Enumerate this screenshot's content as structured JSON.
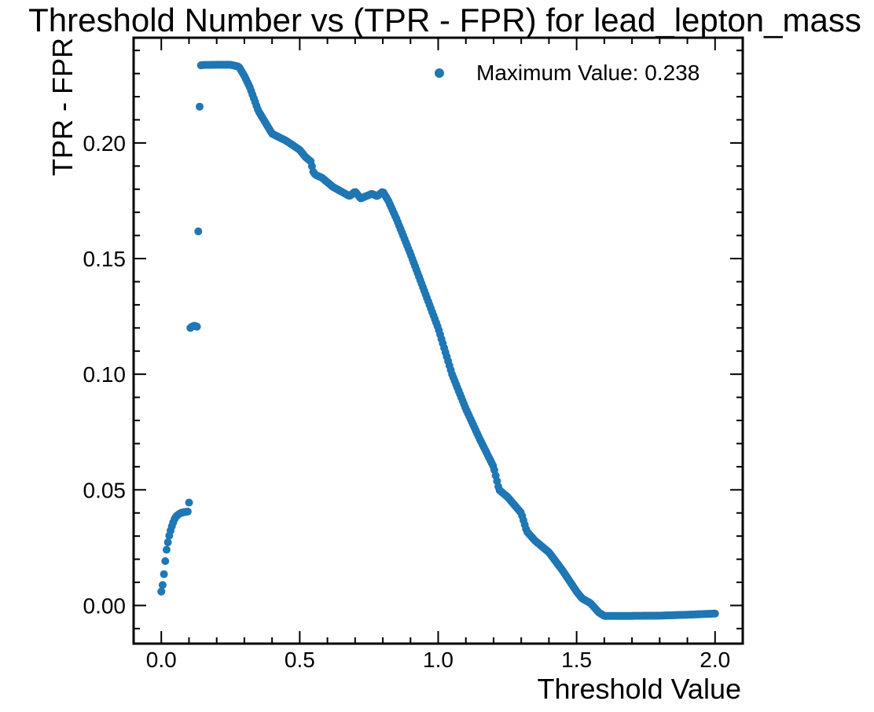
{
  "chart_data": {
    "type": "scatter",
    "title": "Threshold Number vs (TPR - FPR) for lead_lepton_mass",
    "xlabel": "Threshold Value",
    "ylabel": "TPR - FPR",
    "xlim": [
      -0.1,
      2.1
    ],
    "ylim": [
      -0.0165,
      0.2455
    ],
    "x_ticks": [
      0.0,
      0.5,
      1.0,
      1.5,
      2.0
    ],
    "x_tick_labels": [
      "0.0",
      "0.5",
      "1.0",
      "1.5",
      "2.0"
    ],
    "y_ticks": [
      0.0,
      0.05,
      0.1,
      0.15,
      0.2
    ],
    "y_tick_labels": [
      "0.00",
      "0.05",
      "0.10",
      "0.15",
      "0.20"
    ],
    "legend": {
      "label": "Maximum Value: 0.238",
      "placement": "top-right"
    },
    "grid": false,
    "marker_color": "#1f77b4",
    "series": [
      {
        "name": "Maximum Value: 0.238",
        "curve_x": [
          0.0,
          0.005,
          0.01,
          0.015,
          0.02,
          0.03,
          0.04,
          0.05,
          0.06,
          0.07,
          0.08,
          0.09,
          0.1,
          0.105,
          0.11,
          0.12,
          0.13,
          0.14,
          0.15,
          0.2,
          0.25,
          0.28,
          0.3,
          0.32,
          0.35,
          0.38,
          0.4,
          0.45,
          0.5,
          0.52,
          0.54,
          0.55,
          0.56,
          0.58,
          0.6,
          0.62,
          0.65,
          0.68,
          0.7,
          0.72,
          0.74,
          0.76,
          0.78,
          0.8,
          0.82,
          0.85,
          0.9,
          0.95,
          1.0,
          1.05,
          1.1,
          1.15,
          1.2,
          1.21,
          1.22,
          1.25,
          1.3,
          1.32,
          1.35,
          1.4,
          1.45,
          1.5,
          1.52,
          1.55,
          1.58,
          1.6,
          1.7,
          1.8,
          1.9,
          2.0
        ],
        "curve_y": [
          0.006,
          0.009,
          0.014,
          0.02,
          0.025,
          0.031,
          0.035,
          0.038,
          0.0392,
          0.04,
          0.0403,
          0.0405,
          0.0407,
          0.12,
          0.1205,
          0.121,
          0.1205,
          0.2335,
          0.2337,
          0.2338,
          0.2338,
          0.233,
          0.229,
          0.224,
          0.214,
          0.208,
          0.204,
          0.201,
          0.197,
          0.194,
          0.192,
          0.187,
          0.186,
          0.185,
          0.183,
          0.181,
          0.179,
          0.177,
          0.179,
          0.176,
          0.177,
          0.178,
          0.177,
          0.179,
          0.175,
          0.167,
          0.152,
          0.136,
          0.12,
          0.1,
          0.085,
          0.072,
          0.06,
          0.055,
          0.05,
          0.047,
          0.04,
          0.032,
          0.028,
          0.023,
          0.015,
          0.006,
          0.003,
          0.001,
          -0.003,
          -0.0045,
          -0.0045,
          -0.0044,
          -0.004,
          -0.0035
        ],
        "num_points": 420
      }
    ]
  }
}
